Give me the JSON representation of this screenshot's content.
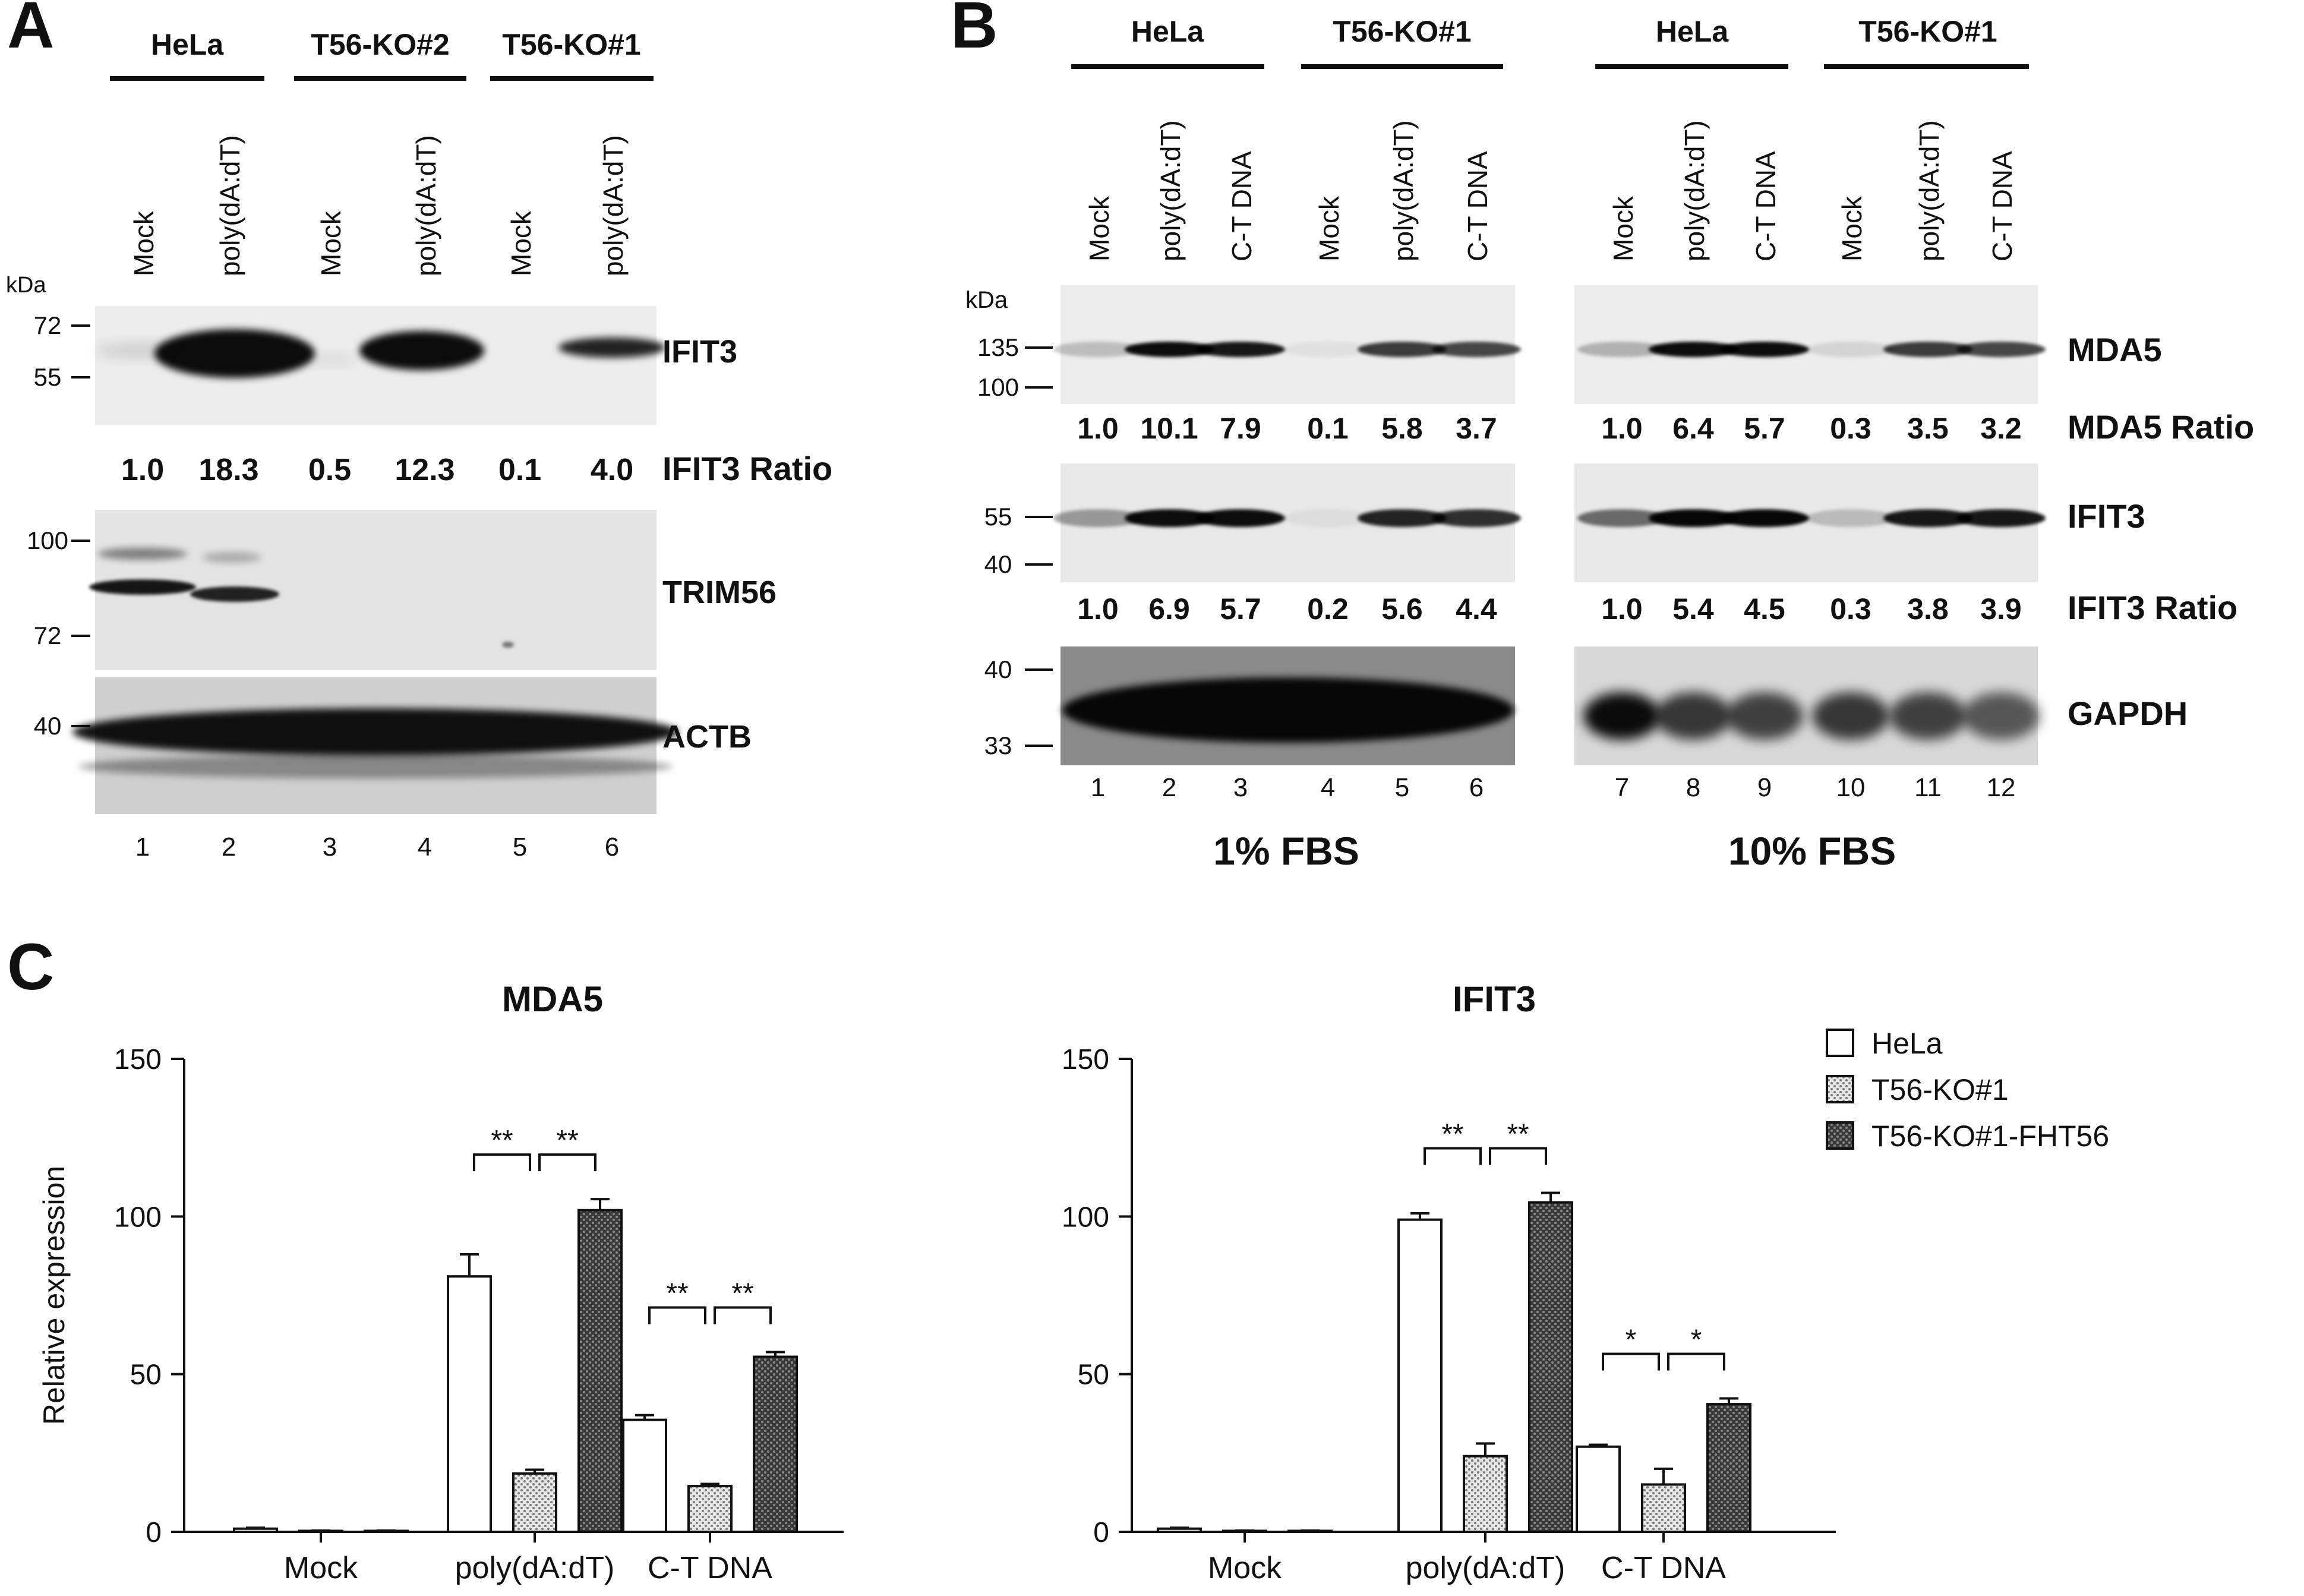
{
  "panel_letters": {
    "a": "A",
    "b": "B",
    "c": "C"
  },
  "common": {
    "kda": "kDa",
    "mock": "Mock",
    "polydadt": "poly(dA:dT)",
    "ctdna": "C-T DNA"
  },
  "panel_a": {
    "groups": [
      "HeLa",
      "T56-KO#2",
      "T56-KO#1"
    ],
    "lanes": [
      "Mock",
      "poly(dA:dT)",
      "Mock",
      "poly(dA:dT)",
      "Mock",
      "poly(dA:dT)"
    ],
    "lane_numbers": [
      "1",
      "2",
      "3",
      "4",
      "5",
      "6"
    ],
    "ifit3": {
      "label": "IFIT3",
      "markers": [
        "72",
        "55"
      ],
      "ratio_label": "IFIT3 Ratio",
      "ratios": [
        "1.0",
        "18.3",
        "0.5",
        "12.3",
        "0.1",
        "4.0"
      ]
    },
    "trim56": {
      "label": "TRIM56",
      "markers": [
        "100",
        "72"
      ]
    },
    "actb": {
      "label": "ACTB",
      "markers": [
        "40"
      ]
    }
  },
  "panel_b": {
    "groups": [
      "HeLa",
      "T56-KO#1",
      "HeLa",
      "T56-KO#1"
    ],
    "lane_numbers": [
      "1",
      "2",
      "3",
      "4",
      "5",
      "6",
      "7",
      "8",
      "9",
      "10",
      "11",
      "12"
    ],
    "conditions": [
      "1% FBS",
      "10% FBS"
    ],
    "mda5": {
      "label": "MDA5",
      "markers": [
        "135",
        "100"
      ],
      "ratio_label": "MDA5 Ratio",
      "ratios": [
        "1.0",
        "10.1",
        "7.9",
        "0.1",
        "5.8",
        "3.7",
        "1.0",
        "6.4",
        "5.7",
        "0.3",
        "3.5",
        "3.2"
      ]
    },
    "ifit3": {
      "label": "IFIT3",
      "markers": [
        "55",
        "40"
      ],
      "ratio_label": "IFIT3 Ratio",
      "ratios": [
        "1.0",
        "6.9",
        "5.7",
        "0.2",
        "5.6",
        "4.4",
        "1.0",
        "5.4",
        "4.5",
        "0.3",
        "3.8",
        "3.9"
      ]
    },
    "gapdh": {
      "label": "GAPDH",
      "markers": [
        "40",
        "33"
      ]
    }
  },
  "chart_data": [
    {
      "type": "bar",
      "title": "MDA5",
      "ylabel": "Relative expression",
      "categories": [
        "Mock",
        "poly(dA:dT)",
        "C-T DNA"
      ],
      "ylim": [
        0,
        150
      ],
      "yticks": [
        "0",
        "50",
        "100",
        "150"
      ],
      "series": [
        {
          "name": "HeLa",
          "values": [
            1,
            81,
            35.5
          ],
          "errors": [
            0.3,
            7,
            1.5
          ]
        },
        {
          "name": "T56-KO#1",
          "values": [
            0.3,
            18.5,
            14.5
          ],
          "errors": [
            0.1,
            1.2,
            0.7
          ]
        },
        {
          "name": "T56-KO#1-FHT56",
          "values": [
            0.3,
            102,
            55.5
          ],
          "errors": [
            0.1,
            3.5,
            1.5
          ]
        }
      ],
      "significance": [
        {
          "category": 1,
          "pairs": [
            "**",
            "**"
          ]
        },
        {
          "category": 2,
          "pairs": [
            "**",
            "**"
          ]
        }
      ]
    },
    {
      "type": "bar",
      "title": "IFIT3",
      "categories": [
        "Mock",
        "poly(dA:dT)",
        "C-T DNA"
      ],
      "ylim": [
        0,
        150
      ],
      "yticks": [
        "0",
        "50",
        "100",
        "150"
      ],
      "series": [
        {
          "name": "HeLa",
          "values": [
            1,
            99,
            27
          ],
          "errors": [
            0.3,
            2,
            0.6
          ]
        },
        {
          "name": "T56-KO#1",
          "values": [
            0.3,
            24,
            15
          ],
          "errors": [
            0.1,
            4,
            5
          ]
        },
        {
          "name": "T56-KO#1-FHT56",
          "values": [
            0.3,
            104.5,
            40.5
          ],
          "errors": [
            0.1,
            3,
            1.8
          ]
        }
      ],
      "significance": [
        {
          "category": 1,
          "pairs": [
            "**",
            "**"
          ]
        },
        {
          "category": 2,
          "pairs": [
            "*",
            "*"
          ]
        }
      ],
      "legend": [
        "HeLa",
        "T56-KO#1",
        "T56-KO#1-FHT56"
      ]
    }
  ]
}
